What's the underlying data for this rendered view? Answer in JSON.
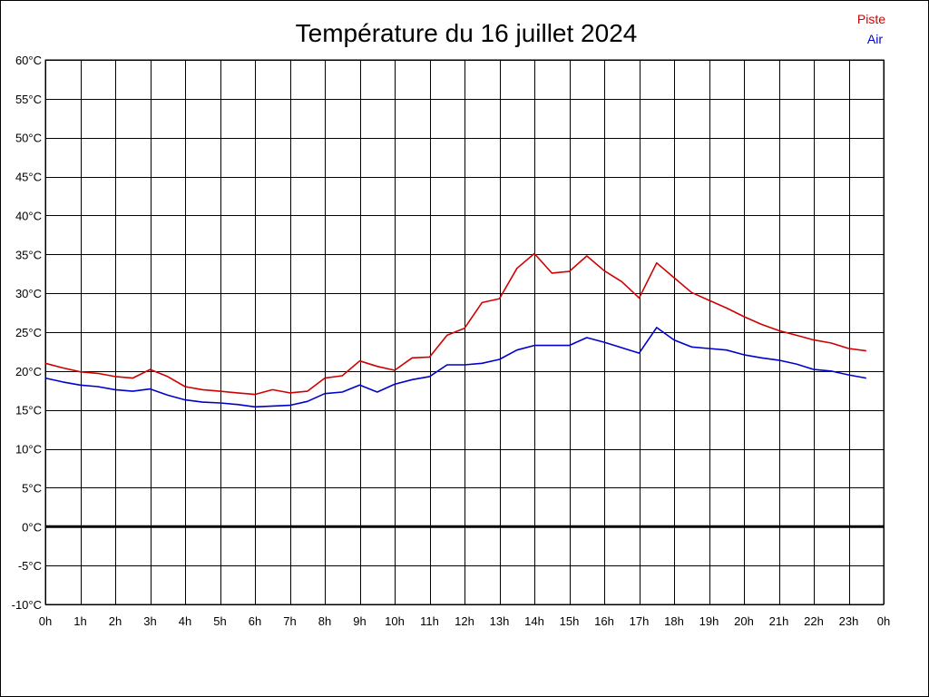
{
  "chart_data": {
    "type": "line",
    "title": "Température du 16 juillet 2024",
    "xlabel": "",
    "ylabel": "",
    "ylim": [
      -10,
      60
    ],
    "xlim": [
      0,
      24
    ],
    "grid": true,
    "legend_position": "top-right",
    "x_ticks": [
      "0h",
      "1h",
      "2h",
      "3h",
      "4h",
      "5h",
      "6h",
      "7h",
      "8h",
      "9h",
      "10h",
      "11h",
      "12h",
      "13h",
      "14h",
      "15h",
      "16h",
      "17h",
      "18h",
      "19h",
      "20h",
      "21h",
      "22h",
      "23h",
      "0h"
    ],
    "y_ticks": [
      "60°C",
      "55°C",
      "50°C",
      "45°C",
      "40°C",
      "35°C",
      "30°C",
      "25°C",
      "20°C",
      "15°C",
      "10°C",
      "5°C",
      "0°C",
      "-5°C",
      "-10°C"
    ],
    "x": [
      0,
      0.5,
      1,
      1.5,
      2,
      2.5,
      3,
      3.5,
      4,
      4.5,
      5,
      5.5,
      6,
      6.5,
      7,
      7.5,
      8,
      8.5,
      9,
      9.5,
      10,
      10.5,
      11,
      11.5,
      12,
      12.5,
      13,
      13.5,
      14,
      14.5,
      15,
      15.5,
      16,
      16.5,
      17,
      17.5,
      18,
      18.5,
      19,
      19.5,
      20,
      20.5,
      21,
      21.5,
      22,
      22.5,
      23,
      23.5
    ],
    "series": [
      {
        "name": "Piste",
        "color": "#d00000",
        "values": [
          21.0,
          20.4,
          19.9,
          19.7,
          19.3,
          19.1,
          20.2,
          19.3,
          18.0,
          17.6,
          17.4,
          17.2,
          17.0,
          17.6,
          17.2,
          17.4,
          19.1,
          19.4,
          21.3,
          20.6,
          20.1,
          21.7,
          21.8,
          24.6,
          25.5,
          28.8,
          29.3,
          33.2,
          35.1,
          32.6,
          32.8,
          34.8,
          32.9,
          31.5,
          29.4,
          33.9,
          32.0,
          30.1,
          29.1,
          28.1,
          27.0,
          26.0,
          25.2,
          24.6,
          24.0,
          23.6,
          22.9,
          22.6
        ]
      },
      {
        "name": "Air",
        "color": "#0000cc",
        "values": [
          19.1,
          18.6,
          18.2,
          18.0,
          17.6,
          17.4,
          17.7,
          16.9,
          16.3,
          16.0,
          15.9,
          15.7,
          15.4,
          15.5,
          15.6,
          16.1,
          17.1,
          17.3,
          18.2,
          17.3,
          18.3,
          18.9,
          19.3,
          20.8,
          20.8,
          21.0,
          21.5,
          22.7,
          23.3,
          23.3,
          23.3,
          24.3,
          23.7,
          23.0,
          22.3,
          25.6,
          24.0,
          23.1,
          22.9,
          22.7,
          22.1,
          21.7,
          21.4,
          20.9,
          20.2,
          20.0,
          19.5,
          19.1
        ]
      }
    ]
  }
}
